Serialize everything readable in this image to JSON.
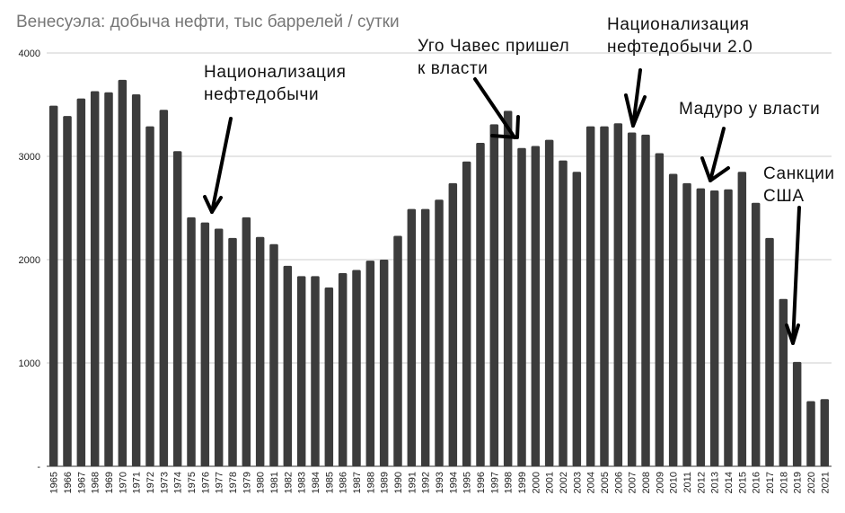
{
  "chart_data": {
    "type": "bar",
    "title": "Венесуэла: добыча нефти, тыс баррелей / сутки",
    "xlabel": "",
    "ylabel": "",
    "ylim": [
      0,
      4000
    ],
    "y_ticks": [
      "4000",
      "3000",
      "2000",
      "1000",
      "-"
    ],
    "grid": true,
    "categories": [
      "1965",
      "1966",
      "1967",
      "1968",
      "1969",
      "1970",
      "1971",
      "1972",
      "1973",
      "1974",
      "1975",
      "1976",
      "1977",
      "1978",
      "1979",
      "1980",
      "1981",
      "1982",
      "1983",
      "1984",
      "1985",
      "1986",
      "1987",
      "1988",
      "1989",
      "1990",
      "1991",
      "1992",
      "1993",
      "1994",
      "1995",
      "1996",
      "1997",
      "1998",
      "1999",
      "2000",
      "2001",
      "2002",
      "2003",
      "2004",
      "2005",
      "2006",
      "2007",
      "2008",
      "2009",
      "2010",
      "2011",
      "2012",
      "2013",
      "2014",
      "2015",
      "2016",
      "2017",
      "2018",
      "2019",
      "2020",
      "2021"
    ],
    "values": [
      3490,
      3390,
      3560,
      3630,
      3620,
      3740,
      3600,
      3290,
      3450,
      3050,
      2410,
      2360,
      2300,
      2210,
      2410,
      2220,
      2150,
      1940,
      1840,
      1840,
      1730,
      1870,
      1900,
      1990,
      2000,
      2230,
      2490,
      2490,
      2580,
      2740,
      2950,
      3130,
      3310,
      3440,
      3080,
      3100,
      3160,
      2960,
      2850,
      3290,
      3290,
      3320,
      3230,
      3210,
      3030,
      2830,
      2740,
      2690,
      2670,
      2680,
      2850,
      2550,
      2210,
      1620,
      1010,
      630,
      650
    ],
    "color": "#3c3c3c",
    "annotations": [
      {
        "lines": [
          "Национализация",
          "нефтедобычи"
        ]
      },
      {
        "lines": [
          "Уго Чавес пришел",
          "к власти"
        ]
      },
      {
        "lines": [
          "Национализация",
          "нефтедобычи 2.0"
        ]
      },
      {
        "lines": [
          "Мадуро у власти"
        ]
      },
      {
        "lines": [
          "Санкции",
          "США"
        ]
      }
    ]
  }
}
